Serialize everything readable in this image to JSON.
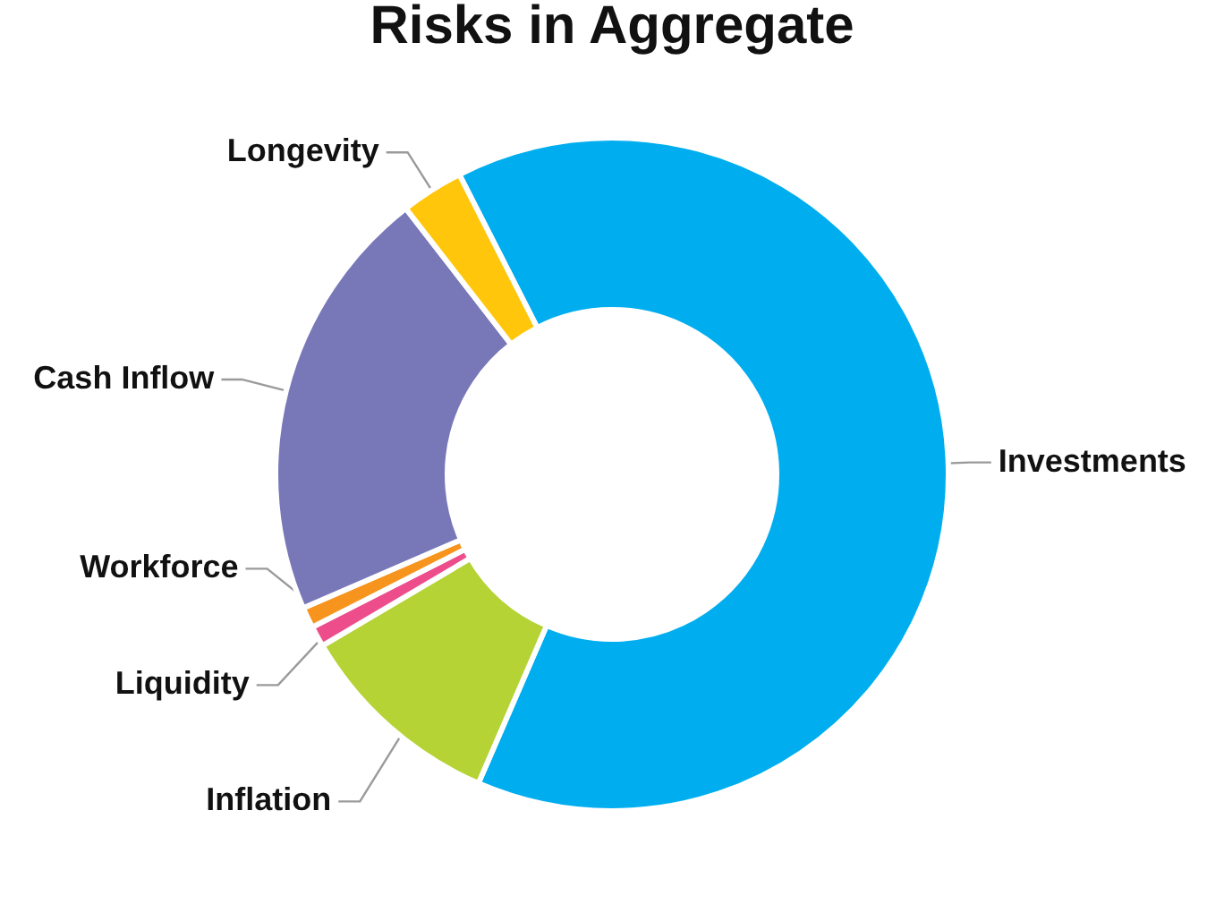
{
  "chart_data": {
    "type": "donut",
    "title": "Risks in Aggregate",
    "categories": [
      "Investments",
      "Inflation",
      "Liquidity",
      "Workforce",
      "Cash Inflow",
      "Longevity"
    ],
    "values": [
      64,
      10,
      1,
      1,
      21,
      3
    ],
    "colors": [
      "#00aeef",
      "#b5d334",
      "#ee4d8c",
      "#f7941d",
      "#7878b9",
      "#ffc60b"
    ],
    "legend": false
  }
}
